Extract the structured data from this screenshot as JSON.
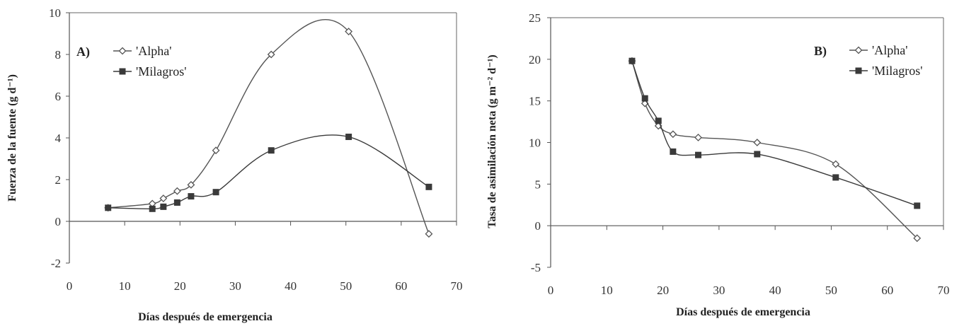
{
  "chart_data": [
    {
      "type": "line",
      "panel_label": "A)",
      "title": "",
      "xlabel": "Días después de emergencia",
      "ylabel": "Fuerza de la fuente (g d⁻¹)",
      "xlim": [
        0,
        70
      ],
      "ylim": [
        -2,
        10
      ],
      "xticks": [
        0,
        10,
        20,
        30,
        40,
        50,
        60,
        70
      ],
      "yticks": [
        -2,
        0,
        2,
        4,
        6,
        8,
        10
      ],
      "grid": false,
      "legend_position": "top-left",
      "series": [
        {
          "name": "'Alpha'",
          "marker": "open-diamond",
          "color": "#555555",
          "x": [
            7,
            15,
            17,
            19.5,
            22,
            26.5,
            36.5,
            50.5,
            65
          ],
          "y": [
            0.65,
            0.85,
            1.1,
            1.45,
            1.75,
            3.4,
            8.0,
            9.1,
            -0.6
          ]
        },
        {
          "name": "'Milagros'",
          "marker": "filled-square",
          "color": "#3a3a3a",
          "x": [
            7,
            15,
            17,
            19.5,
            22,
            26.5,
            36.5,
            50.5,
            65
          ],
          "y": [
            0.65,
            0.6,
            0.7,
            0.9,
            1.2,
            1.4,
            3.4,
            4.05,
            1.65
          ]
        }
      ]
    },
    {
      "type": "line",
      "panel_label": "B)",
      "title": "",
      "xlabel": "Días después de emergencia",
      "ylabel": "Tasa de asimilación neta (g m⁻² d⁻¹)",
      "xlim": [
        0,
        70
      ],
      "ylim": [
        -5,
        25
      ],
      "xticks": [
        0,
        10,
        20,
        30,
        40,
        50,
        60,
        70
      ],
      "yticks": [
        -5,
        0,
        5,
        10,
        15,
        20,
        25
      ],
      "grid": false,
      "legend_position": "top-right",
      "series": [
        {
          "name": "'Alpha'",
          "marker": "open-diamond",
          "color": "#555555",
          "x": [
            14.5,
            16.8,
            19.2,
            21.8,
            26.3,
            36.8,
            50.8,
            65.3
          ],
          "y": [
            19.8,
            14.7,
            12.0,
            11.0,
            10.6,
            10.0,
            7.4,
            -1.5
          ]
        },
        {
          "name": "'Milagros'",
          "marker": "filled-square",
          "color": "#3a3a3a",
          "x": [
            14.5,
            16.8,
            19.2,
            21.8,
            26.3,
            36.8,
            50.8,
            65.3
          ],
          "y": [
            19.8,
            15.3,
            12.6,
            8.9,
            8.5,
            8.6,
            5.8,
            2.4
          ]
        }
      ]
    }
  ]
}
